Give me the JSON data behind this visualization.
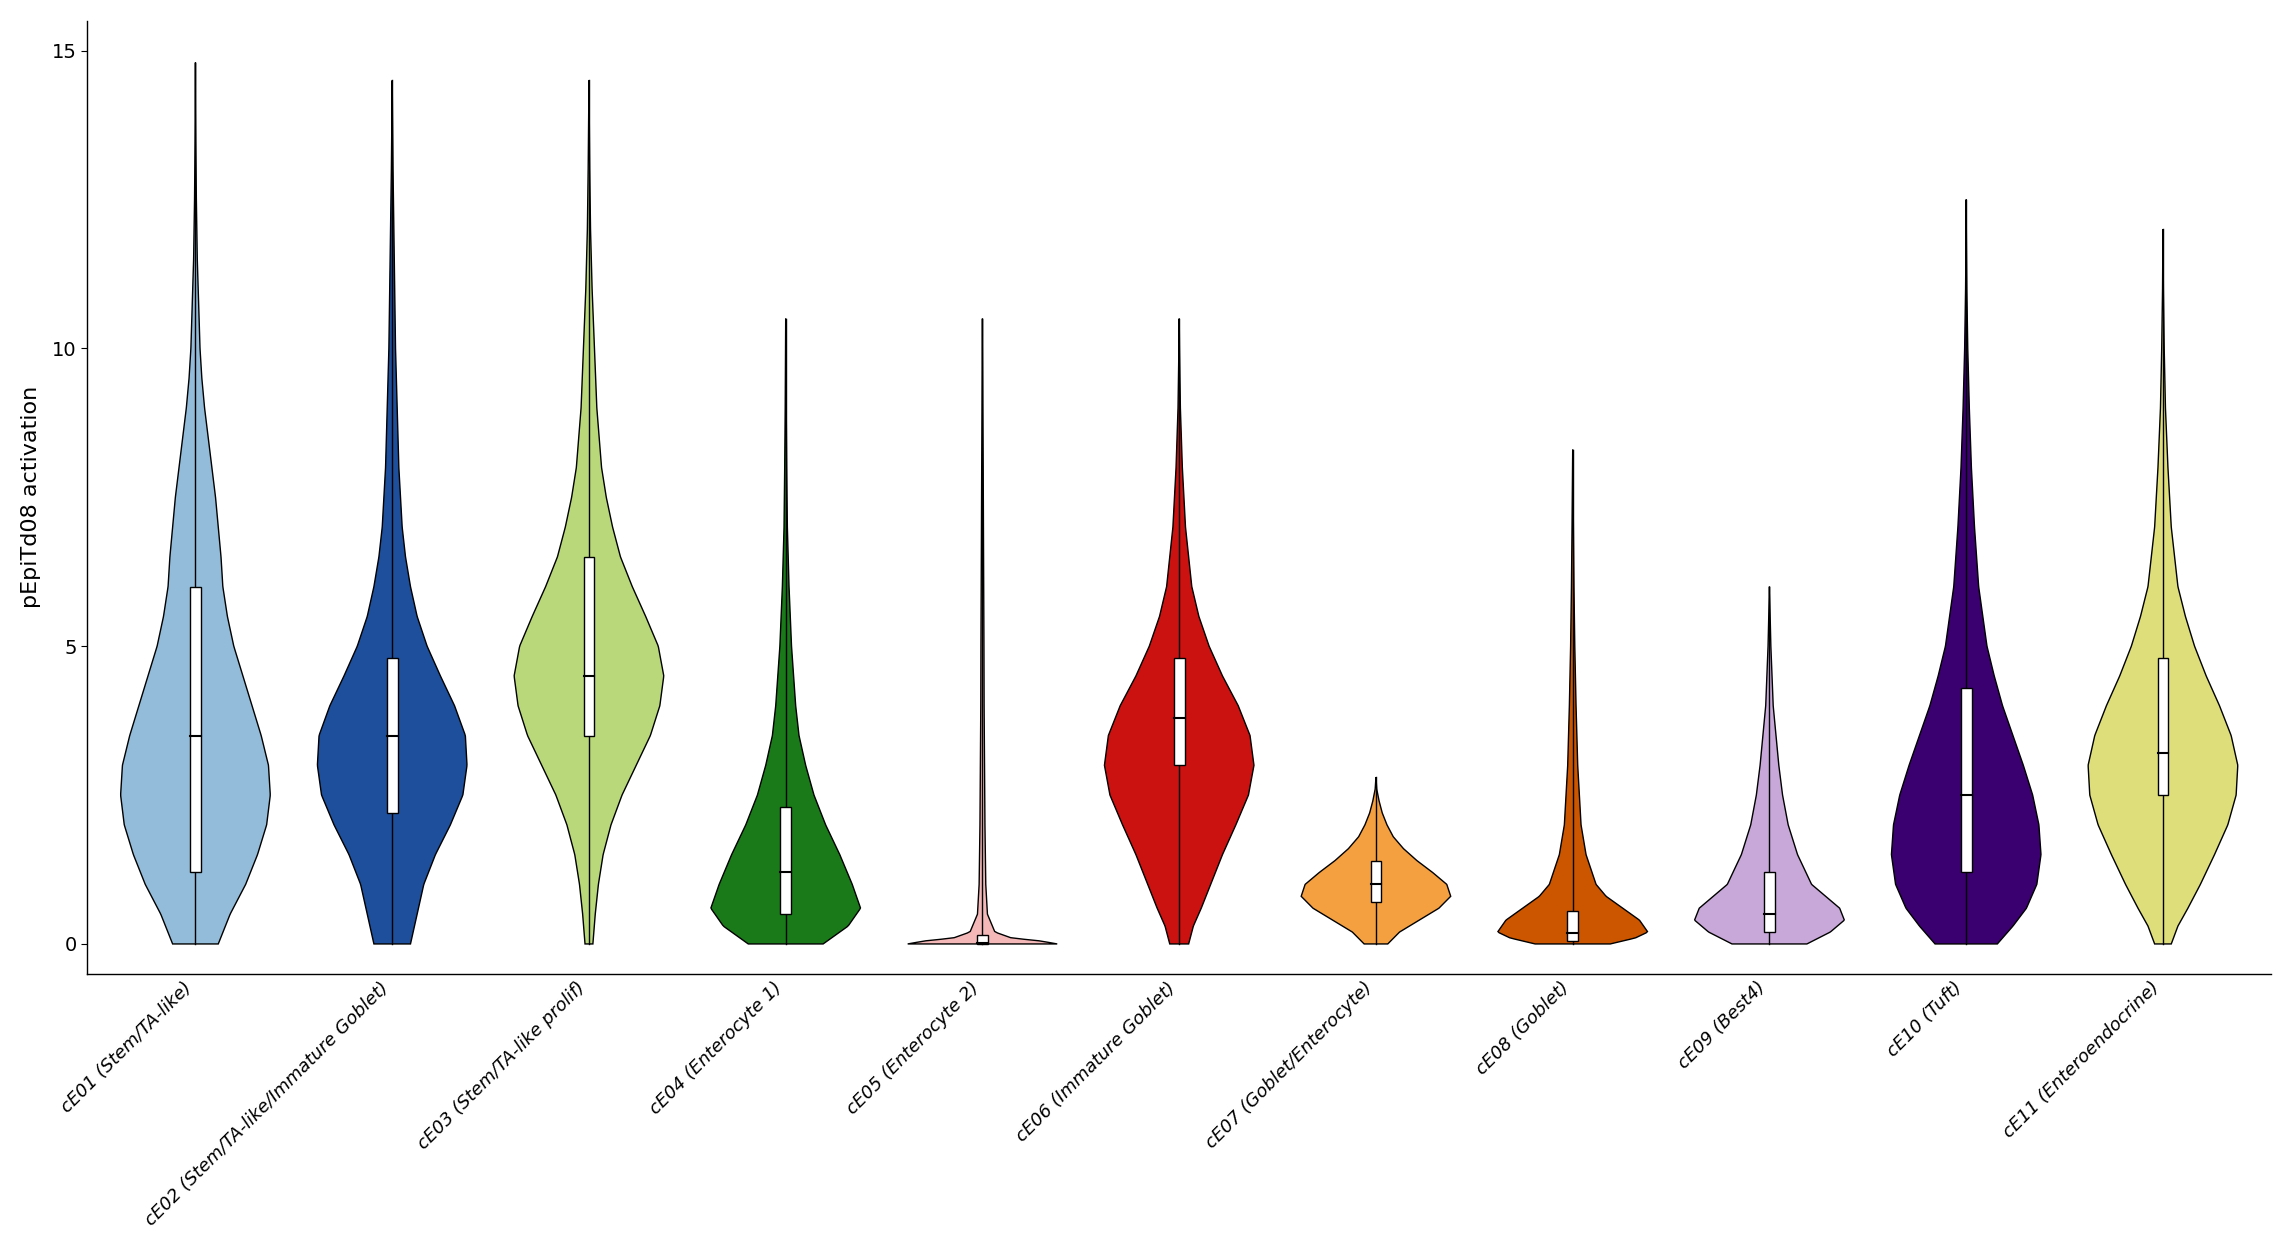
{
  "categories": [
    "cE01 (Stem/TA-like)",
    "cE02 (Stem/TA-like/Immature Goblet)",
    "cE03 (Stem/TA-like prolif)",
    "cE04 (Enterocyte 1)",
    "cE05 (Enterocyte 2)",
    "cE06 (Immature Goblet)",
    "cE07 (Goblet/Enterocyte)",
    "cE08 (Goblet)",
    "cE09 (Best4)",
    "cE10 (Tuft)",
    "cE11 (Enteroendocrine)"
  ],
  "colors": [
    "#92bcd9",
    "#1e4f9c",
    "#b8d87a",
    "#1a7a1a",
    "#f5b8b8",
    "#cc1111",
    "#f5a040",
    "#cc5500",
    "#c8a8d8",
    "#3a0070",
    "#dede7a"
  ],
  "violins": [
    {
      "name": "cE01",
      "y_vals": [
        0.0,
        0.5,
        1.0,
        1.5,
        2.0,
        2.5,
        3.0,
        3.5,
        4.0,
        4.5,
        5.0,
        5.5,
        6.0,
        6.5,
        7.0,
        7.5,
        8.0,
        8.5,
        9.0,
        9.5,
        10.0,
        10.5,
        11.0,
        11.5,
        12.0,
        12.5,
        13.0,
        13.5,
        14.0,
        14.5,
        14.8
      ],
      "w_vals": [
        0.25,
        0.38,
        0.55,
        0.68,
        0.78,
        0.82,
        0.8,
        0.72,
        0.62,
        0.52,
        0.42,
        0.35,
        0.3,
        0.28,
        0.25,
        0.22,
        0.18,
        0.14,
        0.1,
        0.07,
        0.05,
        0.04,
        0.03,
        0.02,
        0.015,
        0.01,
        0.007,
        0.004,
        0.002,
        0.001,
        0.0
      ],
      "q1": 1.2,
      "median": 3.5,
      "q3": 6.0,
      "whisker_lo": 0.0,
      "whisker_hi": 14.8
    },
    {
      "name": "cE02",
      "y_vals": [
        0.0,
        0.5,
        1.0,
        1.5,
        2.0,
        2.5,
        3.0,
        3.5,
        4.0,
        4.5,
        5.0,
        5.5,
        6.0,
        6.5,
        7.0,
        8.0,
        9.0,
        10.0,
        11.0,
        12.0,
        13.0,
        14.0,
        14.5
      ],
      "w_vals": [
        0.22,
        0.3,
        0.38,
        0.52,
        0.7,
        0.85,
        0.9,
        0.88,
        0.75,
        0.58,
        0.42,
        0.3,
        0.22,
        0.16,
        0.12,
        0.08,
        0.06,
        0.04,
        0.03,
        0.02,
        0.01,
        0.003,
        0.0
      ],
      "q1": 2.2,
      "median": 3.5,
      "q3": 4.8,
      "whisker_lo": 0.0,
      "whisker_hi": 14.5
    },
    {
      "name": "cE03",
      "y_vals": [
        0.0,
        0.5,
        1.0,
        1.5,
        2.0,
        2.5,
        3.0,
        3.5,
        4.0,
        4.5,
        5.0,
        5.5,
        6.0,
        6.5,
        7.0,
        7.5,
        8.0,
        9.0,
        10.0,
        11.0,
        12.0,
        13.0,
        14.0,
        14.5
      ],
      "w_vals": [
        0.05,
        0.08,
        0.12,
        0.18,
        0.28,
        0.42,
        0.6,
        0.78,
        0.9,
        0.95,
        0.88,
        0.72,
        0.55,
        0.4,
        0.3,
        0.22,
        0.16,
        0.1,
        0.07,
        0.04,
        0.02,
        0.01,
        0.003,
        0.0
      ],
      "q1": 3.5,
      "median": 4.5,
      "q3": 6.5,
      "whisker_lo": 0.0,
      "whisker_hi": 14.5
    },
    {
      "name": "cE04",
      "y_vals": [
        0.0,
        0.3,
        0.6,
        1.0,
        1.5,
        2.0,
        2.5,
        3.0,
        3.5,
        4.0,
        5.0,
        6.0,
        7.0,
        8.0,
        9.0,
        10.0,
        10.5
      ],
      "w_vals": [
        0.45,
        0.75,
        0.9,
        0.8,
        0.65,
        0.48,
        0.34,
        0.24,
        0.16,
        0.12,
        0.07,
        0.04,
        0.02,
        0.012,
        0.006,
        0.002,
        0.0
      ],
      "q1": 0.5,
      "median": 1.2,
      "q3": 2.3,
      "whisker_lo": 0.0,
      "whisker_hi": 10.5
    },
    {
      "name": "cE05",
      "y_vals": [
        0.0,
        0.05,
        0.1,
        0.2,
        0.5,
        1.0,
        2.0,
        3.0,
        4.0,
        5.0,
        6.0,
        7.0,
        8.0,
        9.0,
        10.0,
        10.5
      ],
      "w_vals": [
        0.9,
        0.7,
        0.35,
        0.15,
        0.06,
        0.04,
        0.03,
        0.025,
        0.02,
        0.018,
        0.015,
        0.012,
        0.009,
        0.005,
        0.002,
        0.0
      ],
      "q1": 0.0,
      "median": 0.02,
      "q3": 0.15,
      "whisker_lo": 0.0,
      "whisker_hi": 10.5
    },
    {
      "name": "cE06",
      "y_vals": [
        0.0,
        0.3,
        0.6,
        1.0,
        1.5,
        2.0,
        2.5,
        3.0,
        3.5,
        4.0,
        4.5,
        5.0,
        5.5,
        6.0,
        7.0,
        8.0,
        9.0,
        10.0,
        10.5
      ],
      "w_vals": [
        0.12,
        0.18,
        0.28,
        0.4,
        0.55,
        0.72,
        0.88,
        0.95,
        0.9,
        0.75,
        0.55,
        0.38,
        0.25,
        0.16,
        0.08,
        0.04,
        0.015,
        0.004,
        0.0
      ],
      "q1": 3.0,
      "median": 3.8,
      "q3": 4.8,
      "whisker_lo": 0.0,
      "whisker_hi": 10.5
    },
    {
      "name": "cE07",
      "y_vals": [
        0.0,
        0.2,
        0.4,
        0.6,
        0.8,
        1.0,
        1.2,
        1.4,
        1.6,
        1.8,
        2.0,
        2.2,
        2.4,
        2.6,
        2.8
      ],
      "w_vals": [
        0.15,
        0.3,
        0.55,
        0.8,
        0.95,
        0.9,
        0.72,
        0.52,
        0.35,
        0.22,
        0.14,
        0.08,
        0.04,
        0.01,
        0.0
      ],
      "q1": 0.7,
      "median": 1.0,
      "q3": 1.4,
      "whisker_lo": 0.0,
      "whisker_hi": 2.8
    },
    {
      "name": "cE08",
      "y_vals": [
        0.0,
        0.1,
        0.2,
        0.4,
        0.6,
        0.8,
        1.0,
        1.5,
        2.0,
        3.0,
        4.0,
        5.0,
        6.0,
        7.0,
        8.0,
        8.3
      ],
      "w_vals": [
        0.45,
        0.75,
        0.9,
        0.8,
        0.6,
        0.4,
        0.28,
        0.16,
        0.1,
        0.06,
        0.04,
        0.025,
        0.015,
        0.008,
        0.002,
        0.0
      ],
      "q1": 0.05,
      "median": 0.18,
      "q3": 0.55,
      "whisker_lo": 0.0,
      "whisker_hi": 8.3
    },
    {
      "name": "cE09",
      "y_vals": [
        0.0,
        0.2,
        0.4,
        0.6,
        0.8,
        1.0,
        1.5,
        2.0,
        2.5,
        3.0,
        3.5,
        4.0,
        5.0,
        6.0
      ],
      "w_vals": [
        0.4,
        0.65,
        0.8,
        0.75,
        0.6,
        0.45,
        0.3,
        0.2,
        0.14,
        0.1,
        0.07,
        0.04,
        0.015,
        0.0
      ],
      "q1": 0.2,
      "median": 0.5,
      "q3": 1.2,
      "whisker_lo": 0.0,
      "whisker_hi": 6.0
    },
    {
      "name": "cE10",
      "y_vals": [
        0.0,
        0.3,
        0.6,
        1.0,
        1.5,
        2.0,
        2.5,
        3.0,
        3.5,
        4.0,
        4.5,
        5.0,
        6.0,
        7.0,
        8.0,
        9.0,
        10.0,
        11.0,
        12.0,
        12.5
      ],
      "w_vals": [
        0.3,
        0.45,
        0.58,
        0.68,
        0.72,
        0.7,
        0.64,
        0.55,
        0.45,
        0.35,
        0.27,
        0.2,
        0.12,
        0.08,
        0.05,
        0.03,
        0.015,
        0.006,
        0.001,
        0.0
      ],
      "q1": 1.2,
      "median": 2.5,
      "q3": 4.3,
      "whisker_lo": 0.0,
      "whisker_hi": 12.5
    },
    {
      "name": "cE11",
      "y_vals": [
        0.0,
        0.3,
        0.6,
        1.0,
        1.5,
        2.0,
        2.5,
        3.0,
        3.5,
        4.0,
        4.5,
        5.0,
        5.5,
        6.0,
        7.0,
        8.0,
        9.0,
        10.0,
        11.0,
        12.0
      ],
      "w_vals": [
        0.1,
        0.18,
        0.3,
        0.45,
        0.62,
        0.78,
        0.88,
        0.9,
        0.82,
        0.68,
        0.52,
        0.38,
        0.27,
        0.18,
        0.1,
        0.06,
        0.03,
        0.015,
        0.005,
        0.0
      ],
      "q1": 2.5,
      "median": 3.2,
      "q3": 4.8,
      "whisker_lo": 0.0,
      "whisker_hi": 12.0
    }
  ],
  "ylabel": "pEpiTd08 activation",
  "ylim": [
    -0.5,
    15.5
  ],
  "yticks": [
    0,
    5,
    10,
    15
  ],
  "figsize": [
    22.92,
    12.5
  ],
  "dpi": 100,
  "violin_width": 0.38,
  "box_width": 0.055
}
